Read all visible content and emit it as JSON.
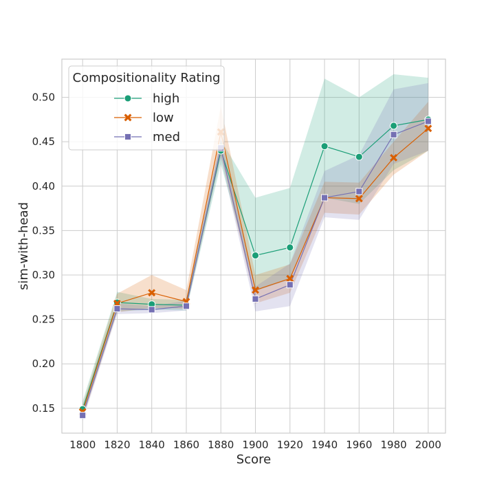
{
  "chart_data": {
    "type": "line",
    "title": "",
    "xlabel": "Score",
    "ylabel": "sim-with-head",
    "x": [
      1800,
      1820,
      1840,
      1860,
      1880,
      1900,
      1920,
      1940,
      1960,
      1980,
      2000
    ],
    "xticks": [
      "1800",
      "1820",
      "1840",
      "1860",
      "1880",
      "1900",
      "1920",
      "1940",
      "1960",
      "1980",
      "2000"
    ],
    "yticks": [
      "0.15",
      "0.20",
      "0.25",
      "0.30",
      "0.35",
      "0.40",
      "0.45",
      "0.50"
    ],
    "xlim": [
      1788,
      2010
    ],
    "ylim": [
      0.122,
      0.543
    ],
    "grid": true,
    "legend": {
      "title": "Compositionality Rating",
      "position": "top-left"
    },
    "series": [
      {
        "name": "high",
        "color": "#1b9e77",
        "marker": "circle",
        "values": [
          0.149,
          0.269,
          0.267,
          0.266,
          0.44,
          0.322,
          0.331,
          0.445,
          0.433,
          0.468,
          0.475
        ],
        "lower": [
          0.14,
          0.259,
          0.261,
          0.26,
          0.425,
          0.282,
          0.295,
          0.387,
          0.38,
          0.418,
          0.44
        ],
        "upper": [
          0.158,
          0.281,
          0.273,
          0.272,
          0.452,
          0.387,
          0.398,
          0.521,
          0.5,
          0.526,
          0.522
        ]
      },
      {
        "name": "low",
        "color": "#d95f02",
        "marker": "x",
        "values": [
          0.146,
          0.268,
          0.28,
          0.27,
          0.461,
          0.283,
          0.296,
          0.387,
          0.386,
          0.432,
          0.465
        ],
        "lower": [
          0.138,
          0.258,
          0.263,
          0.262,
          0.435,
          0.268,
          0.28,
          0.37,
          0.368,
          0.413,
          0.44
        ],
        "upper": [
          0.154,
          0.279,
          0.3,
          0.283,
          0.49,
          0.3,
          0.312,
          0.405,
          0.404,
          0.45,
          0.495
        ]
      },
      {
        "name": "med",
        "color": "#7570b3",
        "marker": "square",
        "values": [
          0.142,
          0.262,
          0.261,
          0.265,
          0.443,
          0.273,
          0.289,
          0.387,
          0.394,
          0.458,
          0.473
        ],
        "lower": [
          0.136,
          0.256,
          0.257,
          0.26,
          0.432,
          0.259,
          0.265,
          0.365,
          0.362,
          0.425,
          0.44
        ],
        "upper": [
          0.148,
          0.268,
          0.265,
          0.271,
          0.454,
          0.287,
          0.313,
          0.417,
          0.435,
          0.509,
          0.516
        ]
      }
    ]
  }
}
